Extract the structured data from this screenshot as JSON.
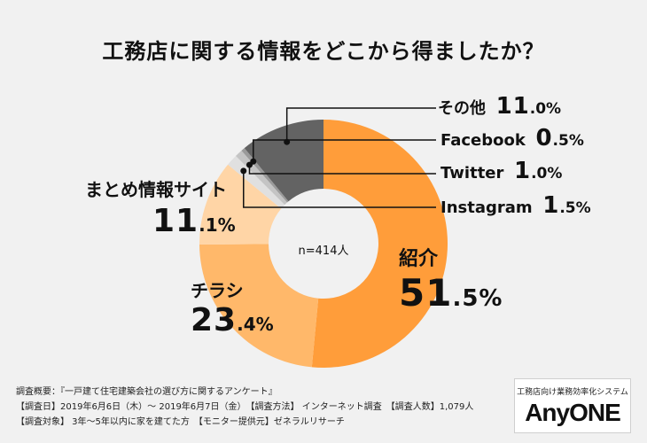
{
  "title": "工務店に関する情報をどこから得ましたか？",
  "chart_data": {
    "type": "pie",
    "title": "工務店に関する情報をどこから得ましたか？",
    "center_label": "n=414人",
    "slices": [
      {
        "label": "紹介",
        "int": "51",
        "dec": ".5%",
        "value": 51.5,
        "color": "#ff9d3a"
      },
      {
        "label": "チラシ",
        "int": "23",
        "dec": ".4%",
        "value": 23.4,
        "color": "#ffb86a"
      },
      {
        "label": "まとめ情報サイト",
        "int": "11",
        "dec": ".1%",
        "value": 11.1,
        "color": "#ffd5a6"
      },
      {
        "label": "Instagram",
        "int": "1",
        "dec": ".5%",
        "value": 1.5,
        "color": "#e0e0e0"
      },
      {
        "label": "Twitter",
        "int": "1",
        "dec": ".0%",
        "value": 1.0,
        "color": "#c4c4c4"
      },
      {
        "label": "Facebook",
        "int": "0",
        "dec": ".5%",
        "value": 0.5,
        "color": "#9a9a9a"
      },
      {
        "label": "その他",
        "int": "11",
        "dec": ".0%",
        "value": 11.0,
        "color": "#636363"
      }
    ]
  },
  "footer": {
    "line1": "調査概要：『一戸建て住宅建築会社の選び方に関するアンケート』",
    "line2": "【調査日】2019年6月6日（木）～ 2019年6月7日（金）　【調査方法】 インターネット調査　【調査人数】1,079人",
    "line3": "【調査対象】 3年～5年以内に家を建てた方　【モニター提供元】ゼネラルリサーチ"
  },
  "logo": {
    "tagline": "工務店向け業務効率化システム",
    "brand": "AnyONE"
  }
}
